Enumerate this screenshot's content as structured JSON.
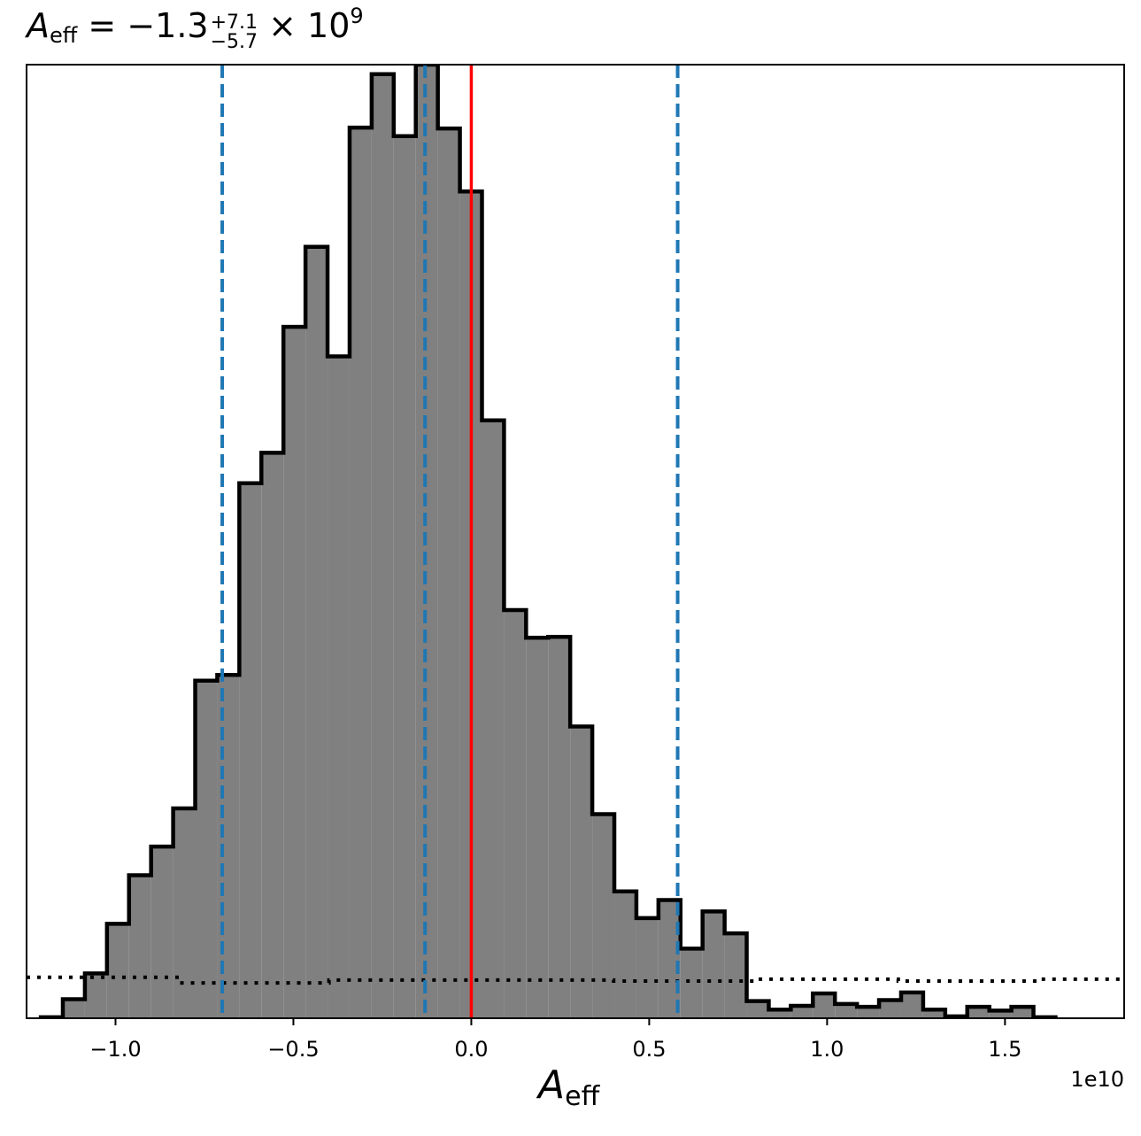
{
  "chart_data": {
    "type": "histogram",
    "title": {
      "symbol": "A",
      "subscript": "eff",
      "equals": " = ",
      "median": "−1.3",
      "upper_err": "+7.1",
      "lower_err": "−5.7",
      "multiplier": " × 10",
      "exponent": "9"
    },
    "xlabel": {
      "symbol": "A",
      "subscript": "eff"
    },
    "ylabel": "",
    "x_offset_label": "1e10",
    "xlim": [
      -1.25,
      1.835
    ],
    "ylim": [
      0,
      1.0
    ],
    "y_axis_ticks": false,
    "x_ticks": [
      -1.0,
      -0.5,
      0.0,
      0.5,
      1.0,
      1.5
    ],
    "x_tick_labels": [
      "−1.0",
      "−0.5",
      "0.0",
      "0.5",
      "1.0",
      "1.5"
    ],
    "bin_edges_start": -1.21,
    "bin_width": 0.062,
    "histogram_values": [
      0.001,
      0.02,
      0.047,
      0.099,
      0.15,
      0.18,
      0.22,
      0.354,
      0.36,
      0.561,
      0.593,
      0.725,
      0.809,
      0.694,
      0.934,
      0.99,
      0.925,
      1.0,
      0.933,
      0.867,
      0.627,
      0.428,
      0.399,
      0.4,
      0.306,
      0.214,
      0.133,
      0.105,
      0.124,
      0.073,
      0.112,
      0.089,
      0.018,
      0.009,
      0.013,
      0.026,
      0.015,
      0.012,
      0.019,
      0.027,
      0.009,
      0.002,
      0.012,
      0.008,
      0.012,
      0.001
    ],
    "reference_line": {
      "x": 0.0,
      "color": "#ff0000",
      "style": "solid"
    },
    "quantile_lines": {
      "x": [
        -0.7,
        -0.13,
        0.58
      ],
      "color": "#1f77b4",
      "style": "dashed"
    },
    "prior_line": {
      "style": "dotted",
      "color": "#000000",
      "y": 0.043
    },
    "bar_fill": "#808080",
    "bar_edge": "#000000"
  }
}
